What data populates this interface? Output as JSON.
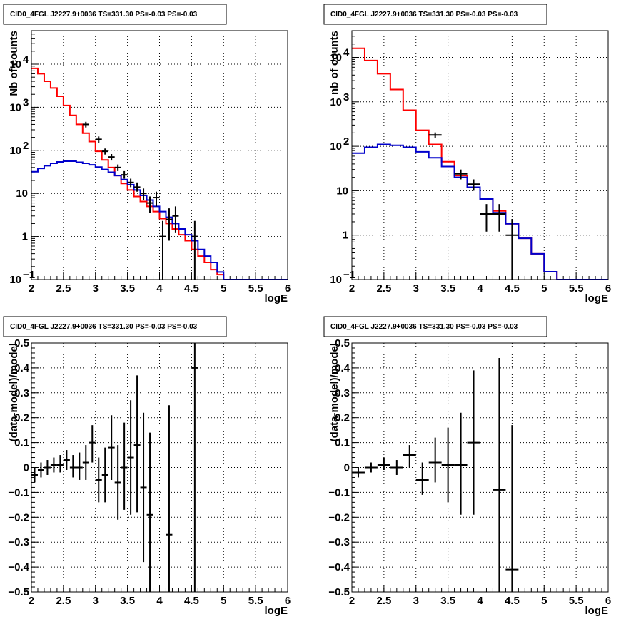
{
  "chart_data": [
    {
      "type": "line",
      "title": "CID0_4FGL J2227.9+0036 TS=331.30 PS=-0.03 PS=-0.03",
      "xlabel": "logE",
      "ylabel": "Nb of counts",
      "yscale": "log",
      "xlim": [
        2,
        6
      ],
      "ylim": [
        0.1,
        60000
      ],
      "x_ticks": [
        "2",
        "2.5",
        "3",
        "3.5",
        "4",
        "4.5",
        "5",
        "5.5",
        "6"
      ],
      "y_ticks": [
        {
          "value": 0.1,
          "base": "10",
          "exp": "−1"
        },
        {
          "value": 1,
          "base": "1",
          "exp": ""
        },
        {
          "value": 10,
          "base": "10",
          "exp": ""
        },
        {
          "value": 100,
          "base": "10",
          "exp": "2"
        },
        {
          "value": 1000,
          "base": "10",
          "exp": "3"
        },
        {
          "value": 10000,
          "base": "10",
          "exp": "4"
        }
      ],
      "grid": true,
      "bin_edges": [
        2.0,
        2.1,
        2.2,
        2.3,
        2.4,
        2.5,
        2.6,
        2.7,
        2.8,
        2.9,
        3.0,
        3.1,
        3.2,
        3.3,
        3.4,
        3.5,
        3.6,
        3.7,
        3.8,
        3.9,
        4.0,
        4.1,
        4.2,
        4.3,
        4.4,
        4.5,
        4.6,
        4.7,
        4.8,
        4.9,
        5.0,
        5.1,
        5.2,
        5.3,
        5.4,
        5.5,
        5.6,
        5.7,
        5.8,
        5.9,
        6.0
      ],
      "series": [
        {
          "color": "#ff0000",
          "style": "step",
          "values": [
            8000,
            6000,
            4000,
            2800,
            1800,
            1100,
            650,
            400,
            250,
            160,
            95,
            60,
            40,
            26,
            17,
            12,
            8.5,
            6.5,
            5,
            3.8,
            2.6,
            2.0,
            1.5,
            1.1,
            0.8,
            0.5,
            0.35,
            0.25,
            0.17,
            0.13,
            0.1,
            0.1,
            0.1,
            0.1,
            0.1,
            0.1,
            0.1,
            0.1,
            0.1,
            0.1
          ]
        },
        {
          "color": "#0000cc",
          "style": "step",
          "values": [
            32,
            38,
            44,
            50,
            54,
            56,
            56,
            53,
            50,
            46,
            41,
            36,
            31,
            26,
            21,
            16,
            12,
            9,
            7,
            5,
            3.8,
            2.8,
            2.0,
            1.5,
            1.1,
            0.8,
            0.5,
            0.35,
            0.25,
            0.15,
            0.1,
            0.1,
            0.1,
            0.1,
            0.1,
            0.1,
            0.1,
            0.1,
            0.1,
            0.1
          ]
        }
      ],
      "points": [
        {
          "x": 2.85,
          "y": 400,
          "lo": 340,
          "hi": 460
        },
        {
          "x": 3.05,
          "y": 180,
          "lo": 150,
          "hi": 210
        },
        {
          "x": 3.15,
          "y": 95,
          "lo": 80,
          "hi": 110
        },
        {
          "x": 3.25,
          "y": 70,
          "lo": 58,
          "hi": 82
        },
        {
          "x": 3.35,
          "y": 40,
          "lo": 33,
          "hi": 47
        },
        {
          "x": 3.45,
          "y": 27,
          "lo": 22,
          "hi": 33
        },
        {
          "x": 3.55,
          "y": 18,
          "lo": 14,
          "hi": 22
        },
        {
          "x": 3.65,
          "y": 14,
          "lo": 11,
          "hi": 18
        },
        {
          "x": 3.75,
          "y": 10,
          "lo": 7,
          "hi": 13
        },
        {
          "x": 3.85,
          "y": 6,
          "lo": 3.5,
          "hi": 8.5
        },
        {
          "x": 3.95,
          "y": 8,
          "lo": 5,
          "hi": 11
        },
        {
          "x": 4.05,
          "y": 1,
          "lo": 0.1,
          "hi": 2.3
        },
        {
          "x": 4.15,
          "y": 2.5,
          "lo": 0.8,
          "hi": 4.5
        },
        {
          "x": 4.25,
          "y": 3,
          "lo": 1.2,
          "hi": 5
        },
        {
          "x": 4.55,
          "y": 1,
          "lo": 0.1,
          "hi": 2.3
        }
      ]
    },
    {
      "type": "line",
      "title": "CID0_4FGL J2227.9+0036 TS=331.30 PS=-0.03 PS=-0.03",
      "xlabel": "logE",
      "ylabel": "nb of counts",
      "yscale": "log",
      "xlim": [
        2,
        6
      ],
      "ylim": [
        0.1,
        40000
      ],
      "x_ticks": [
        "2",
        "2.5",
        "3",
        "3.5",
        "4",
        "4.5",
        "5",
        "5.5",
        "6"
      ],
      "y_ticks": [
        {
          "value": 0.1,
          "base": "10",
          "exp": "−1"
        },
        {
          "value": 1,
          "base": "1",
          "exp": ""
        },
        {
          "value": 10,
          "base": "10",
          "exp": ""
        },
        {
          "value": 100,
          "base": "10",
          "exp": "2"
        },
        {
          "value": 1000,
          "base": "10",
          "exp": "3"
        },
        {
          "value": 10000,
          "base": "10",
          "exp": "4"
        }
      ],
      "grid": true,
      "bin_edges": [
        2.0,
        2.2,
        2.4,
        2.6,
        2.8,
        3.0,
        3.2,
        3.4,
        3.6,
        3.8,
        4.0,
        4.2,
        4.4,
        4.6,
        4.8,
        5.0,
        5.2,
        5.4,
        5.6,
        5.8,
        6.0
      ],
      "series": [
        {
          "color": "#ff0000",
          "style": "step",
          "values": [
            16000,
            8500,
            4300,
            1900,
            650,
            230,
            110,
            45,
            22,
            12,
            6.5,
            3.5,
            1.8,
            0.85,
            0.38,
            0.15,
            0.1,
            0.1,
            0.1,
            0.1
          ]
        },
        {
          "color": "#0000cc",
          "style": "step",
          "values": [
            70,
            95,
            110,
            105,
            95,
            75,
            55,
            35,
            20,
            12,
            6.5,
            3.2,
            1.8,
            0.85,
            0.38,
            0.15,
            0.1,
            0.1,
            0.1,
            0.1
          ]
        }
      ],
      "points": [
        {
          "x": 3.3,
          "y": 180,
          "lo": 155,
          "hi": 205
        },
        {
          "x": 3.7,
          "y": 24,
          "lo": 18,
          "hi": 30
        },
        {
          "x": 3.9,
          "y": 14,
          "lo": 10,
          "hi": 18
        },
        {
          "x": 4.1,
          "y": 3,
          "lo": 1.2,
          "hi": 5
        },
        {
          "x": 4.3,
          "y": 3,
          "lo": 1.2,
          "hi": 5
        },
        {
          "x": 4.5,
          "y": 1,
          "lo": 0.1,
          "hi": 2.3
        }
      ]
    },
    {
      "type": "scatter",
      "title": "CID0_4FGL J2227.9+0036 TS=331.30 PS=-0.03 PS=-0.03",
      "xlabel": "logE",
      "ylabel": "(data-model)/model",
      "yscale": "linear",
      "xlim": [
        2,
        6
      ],
      "ylim": [
        -0.5,
        0.5
      ],
      "x_ticks": [
        "2",
        "2.5",
        "3",
        "3.5",
        "4",
        "4.5",
        "5",
        "5.5",
        "6"
      ],
      "y_ticks": [
        {
          "value": -0.5,
          "label": "−0.5"
        },
        {
          "value": -0.4,
          "label": "−0.4"
        },
        {
          "value": -0.3,
          "label": "−0.3"
        },
        {
          "value": -0.2,
          "label": "−0.2"
        },
        {
          "value": -0.1,
          "label": "−0.1"
        },
        {
          "value": 0,
          "label": "0"
        },
        {
          "value": 0.1,
          "label": "0.1"
        },
        {
          "value": 0.2,
          "label": "0.2"
        },
        {
          "value": 0.3,
          "label": "0.3"
        },
        {
          "value": 0.4,
          "label": "0.4"
        },
        {
          "value": 0.5,
          "label": "0.5"
        }
      ],
      "grid": true,
      "points": [
        {
          "x": 2.05,
          "y": -0.03,
          "lo": -0.06,
          "hi": 0.0,
          "xw": 0.05
        },
        {
          "x": 2.15,
          "y": -0.01,
          "lo": -0.04,
          "hi": 0.02,
          "xw": 0.05
        },
        {
          "x": 2.25,
          "y": 0.0,
          "lo": -0.03,
          "hi": 0.03,
          "xw": 0.05
        },
        {
          "x": 2.35,
          "y": 0.01,
          "lo": -0.02,
          "hi": 0.04,
          "xw": 0.05
        },
        {
          "x": 2.45,
          "y": 0.01,
          "lo": -0.02,
          "hi": 0.05,
          "xw": 0.05
        },
        {
          "x": 2.55,
          "y": 0.03,
          "lo": -0.01,
          "hi": 0.07,
          "xw": 0.05
        },
        {
          "x": 2.65,
          "y": 0.0,
          "lo": -0.04,
          "hi": 0.05,
          "xw": 0.05
        },
        {
          "x": 2.75,
          "y": 0.0,
          "lo": -0.05,
          "hi": 0.06,
          "xw": 0.05
        },
        {
          "x": 2.85,
          "y": 0.02,
          "lo": -0.05,
          "hi": 0.09,
          "xw": 0.05
        },
        {
          "x": 2.95,
          "y": 0.1,
          "lo": 0.02,
          "hi": 0.17,
          "xw": 0.05
        },
        {
          "x": 3.05,
          "y": -0.05,
          "lo": -0.14,
          "hi": 0.04,
          "xw": 0.05
        },
        {
          "x": 3.15,
          "y": -0.03,
          "lo": -0.14,
          "hi": 0.08,
          "xw": 0.05
        },
        {
          "x": 3.25,
          "y": 0.08,
          "lo": -0.05,
          "hi": 0.21,
          "xw": 0.05
        },
        {
          "x": 3.35,
          "y": -0.06,
          "lo": -0.21,
          "hi": 0.09,
          "xw": 0.05
        },
        {
          "x": 3.45,
          "y": 0.0,
          "lo": -0.17,
          "hi": 0.18,
          "xw": 0.05
        },
        {
          "x": 3.55,
          "y": 0.04,
          "lo": -0.19,
          "hi": 0.27,
          "xw": 0.05
        },
        {
          "x": 3.65,
          "y": 0.09,
          "lo": -0.18,
          "hi": 0.37,
          "xw": 0.05
        },
        {
          "x": 3.75,
          "y": -0.08,
          "lo": -0.38,
          "hi": 0.22,
          "xw": 0.05
        },
        {
          "x": 3.85,
          "y": -0.19,
          "lo": -0.5,
          "hi": 0.14,
          "xw": 0.05
        },
        {
          "x": 4.15,
          "y": -0.27,
          "lo": -0.5,
          "hi": 0.25,
          "xw": 0.05
        },
        {
          "x": 4.55,
          "y": 0.4,
          "lo": -0.5,
          "hi": 0.5,
          "xw": 0.05
        }
      ]
    },
    {
      "type": "scatter",
      "title": "CID0_4FGL J2227.9+0036 TS=331.30 PS=-0.03 PS=-0.03",
      "xlabel": "logE",
      "ylabel": "(data-model)/model",
      "yscale": "linear",
      "xlim": [
        2,
        6
      ],
      "ylim": [
        -0.5,
        0.5
      ],
      "x_ticks": [
        "2",
        "2.5",
        "3",
        "3.5",
        "4",
        "4.5",
        "5",
        "5.5",
        "6"
      ],
      "y_ticks": [
        {
          "value": -0.5,
          "label": "−0.5"
        },
        {
          "value": -0.4,
          "label": "−0.4"
        },
        {
          "value": -0.3,
          "label": "−0.3"
        },
        {
          "value": -0.2,
          "label": "−0.2"
        },
        {
          "value": -0.1,
          "label": "−0.1"
        },
        {
          "value": 0,
          "label": "0"
        },
        {
          "value": 0.1,
          "label": "0.1"
        },
        {
          "value": 0.2,
          "label": "0.2"
        },
        {
          "value": 0.3,
          "label": "0.3"
        },
        {
          "value": 0.4,
          "label": "0.4"
        },
        {
          "value": 0.5,
          "label": "0.5"
        }
      ],
      "grid": true,
      "points": [
        {
          "x": 2.1,
          "y": -0.02,
          "lo": -0.04,
          "hi": 0.0,
          "xw": 0.1
        },
        {
          "x": 2.3,
          "y": 0.0,
          "lo": -0.02,
          "hi": 0.02,
          "xw": 0.1
        },
        {
          "x": 2.5,
          "y": 0.01,
          "lo": -0.01,
          "hi": 0.04,
          "xw": 0.1
        },
        {
          "x": 2.7,
          "y": 0.0,
          "lo": -0.03,
          "hi": 0.03,
          "xw": 0.1
        },
        {
          "x": 2.9,
          "y": 0.05,
          "lo": 0.0,
          "hi": 0.09,
          "xw": 0.1
        },
        {
          "x": 3.1,
          "y": -0.05,
          "lo": -0.11,
          "hi": 0.02,
          "xw": 0.1
        },
        {
          "x": 3.3,
          "y": 0.02,
          "lo": -0.06,
          "hi": 0.12,
          "xw": 0.1
        },
        {
          "x": 3.5,
          "y": 0.01,
          "lo": -0.14,
          "hi": 0.16,
          "xw": 0.1
        },
        {
          "x": 3.7,
          "y": 0.01,
          "lo": -0.19,
          "hi": 0.22,
          "xw": 0.1
        },
        {
          "x": 3.9,
          "y": 0.1,
          "lo": -0.19,
          "hi": 0.39,
          "xw": 0.1
        },
        {
          "x": 4.3,
          "y": -0.09,
          "lo": -0.5,
          "hi": 0.44,
          "xw": 0.1
        },
        {
          "x": 4.5,
          "y": -0.41,
          "lo": -0.5,
          "hi": 0.17,
          "xw": 0.1
        }
      ]
    }
  ]
}
